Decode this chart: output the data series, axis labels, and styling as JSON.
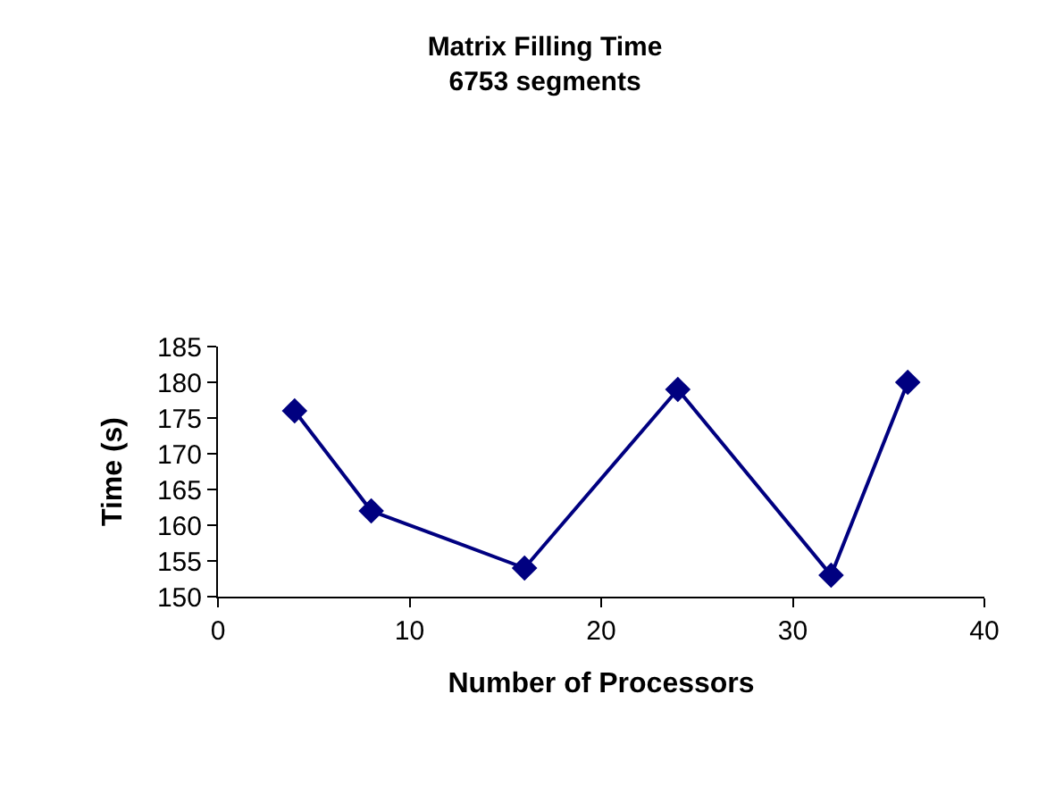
{
  "chart_data": {
    "type": "line",
    "title": "Matrix Filling Time\n6753 segments",
    "xlabel": "Number of Processors",
    "ylabel": "Time (s)",
    "x": [
      4,
      8,
      16,
      24,
      32,
      36
    ],
    "series": [
      {
        "color": "#000080",
        "values": [
          176,
          162,
          154,
          179,
          153,
          180
        ]
      }
    ],
    "xlim": [
      0,
      40
    ],
    "xticks": [
      0,
      10,
      20,
      30,
      40
    ],
    "ylim": [
      150,
      185
    ],
    "yticks": [
      150,
      155,
      160,
      165,
      170,
      175,
      180,
      185
    ],
    "marker": "diamond",
    "line_style": "solid"
  }
}
